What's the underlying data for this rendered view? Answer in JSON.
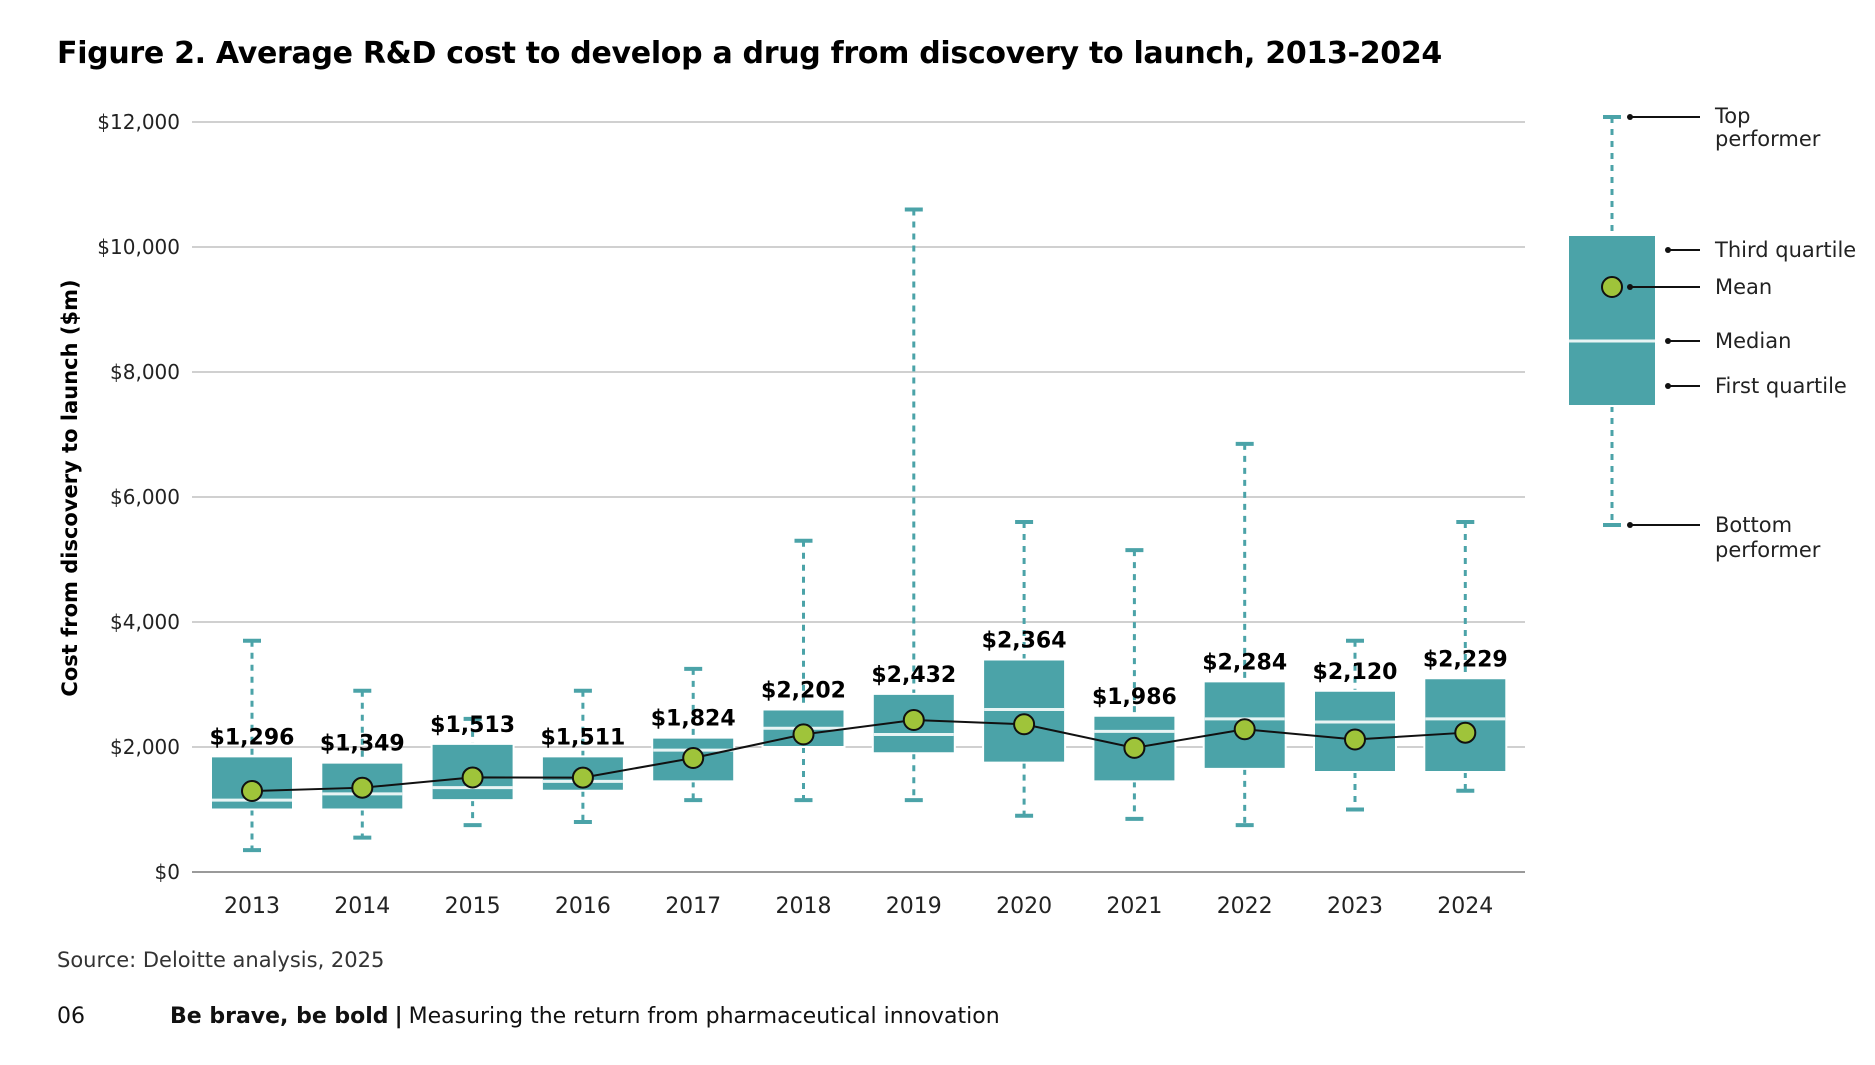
{
  "title": "Figure 2. Average R&D cost to develop a drug from discovery to launch, 2013-2024",
  "source": "Source: Deloitte analysis, 2025",
  "footer": {
    "page": "06",
    "bold": "Be brave, be bold",
    "separator": "|",
    "subtitle": "Measuring the return from pharmaceutical innovation"
  },
  "colors": {
    "box": "#4ba3a8",
    "median_line": "#e8f4f4",
    "whisker": "#4ba3a8",
    "mean_marker": "#9fc43a",
    "mean_line": "#111111",
    "grid": "#d0d0d0"
  },
  "legend": {
    "top": [
      "Top",
      "performer"
    ],
    "third_quartile": "Third quartile",
    "mean": "Mean",
    "median": "Median",
    "first_quartile": "First quartile",
    "bottom": [
      "Bottom",
      "performer"
    ]
  },
  "chart_data": {
    "type": "boxplot",
    "ylabel": "Cost from discovery to launch ($m)",
    "xlabel": "",
    "ylim": [
      0,
      12000
    ],
    "yticks": [
      0,
      2000,
      4000,
      6000,
      8000,
      10000,
      12000
    ],
    "ytick_labels": [
      "$0",
      "$2,000",
      "$4,000",
      "$6,000",
      "$8,000",
      "$10,000",
      "$12,000"
    ],
    "grid": true,
    "legend_position": "right",
    "categories": [
      "2013",
      "2014",
      "2015",
      "2016",
      "2017",
      "2018",
      "2019",
      "2020",
      "2021",
      "2022",
      "2023",
      "2024"
    ],
    "series": [
      {
        "name": "Mean",
        "values": [
          1296,
          1349,
          1513,
          1511,
          1824,
          2202,
          2432,
          2364,
          1986,
          2284,
          2120,
          2229
        ],
        "labels": [
          "$1,296",
          "$1,349",
          "$1,513",
          "$1,511",
          "$1,824",
          "$2,202",
          "$2,432",
          "$2,364",
          "$1,986",
          "$2,284",
          "$2,120",
          "$2,229"
        ]
      }
    ],
    "top_performer": [
      3700,
      2900,
      2450,
      2900,
      3250,
      5300,
      10600,
      5600,
      5150,
      6850,
      3700,
      5600
    ],
    "third_quartile": [
      1850,
      1750,
      2050,
      1850,
      2150,
      2600,
      2850,
      3400,
      2500,
      3050,
      2900,
      3100
    ],
    "median": [
      1150,
      1250,
      1350,
      1450,
      1950,
      2300,
      2200,
      2600,
      2250,
      2450,
      2400,
      2450
    ],
    "first_quartile": [
      1000,
      1000,
      1150,
      1300,
      1450,
      2000,
      1900,
      1750,
      1450,
      1650,
      1600,
      1600
    ],
    "bottom_performer": [
      350,
      550,
      750,
      800,
      1150,
      1150,
      1150,
      900,
      850,
      750,
      1000,
      1300
    ]
  }
}
